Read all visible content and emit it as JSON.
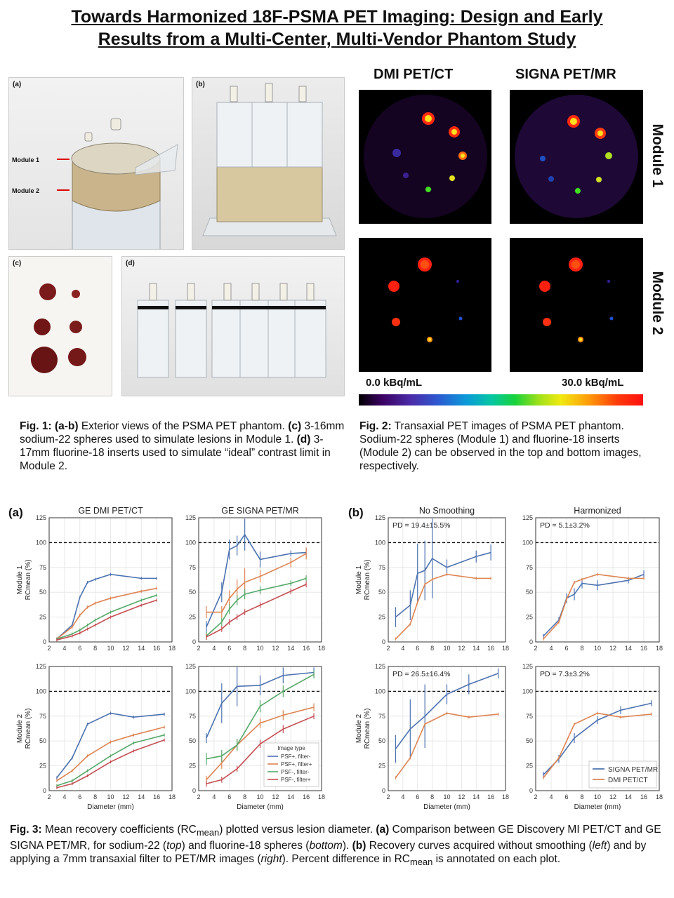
{
  "title": {
    "line1": "Towards Harmonized 18F-PSMA PET Imaging: Design and Early",
    "line2": "Results from a Multi-Center,  Multi-Vendor  Phantom Study"
  },
  "fig1": {
    "panel_a": "(a)",
    "panel_b": "(b)",
    "panel_c": "(c)",
    "panel_d": "(d)",
    "module1_label": "Module 1",
    "module2_label": "Module 2",
    "caption": {
      "fig": "Fig. 1:",
      "ab": "(a-b)",
      "t1": " Exterior views of the PSMA PET phantom. ",
      "c": "(c)",
      "t2": " 3-16mm sodium-22 spheres used to simulate lesions in Module 1. ",
      "d": "(d)",
      "t3": " 3-17mm fluorine-18 inserts used to simulate “ideal” contrast limit in Module 2."
    }
  },
  "fig2": {
    "header_dmi": "DMI PET/CT",
    "header_signa": "SIGNA PET/MR",
    "row1": "Module 1",
    "row2": "Module 2",
    "cbar_min": "0.0 kBq/mL",
    "cbar_max": "30.0 kBq/mL",
    "caption": {
      "fig": "Fig. 2:",
      "text": " Transaxial PET images of PSMA PET phantom. Sodium-22 spheres (Module 1) and fluorine-18 inserts (Module 2) can be observed in the top and bottom images, respectively."
    }
  },
  "fig3": {
    "panel_a_label": "(a)",
    "panel_b_label": "(b)",
    "caption": {
      "fig": "Fig. 3:",
      "t1": " Mean recovery coefficients (RC",
      "sub1": "mean",
      "t2": ") plotted versus lesion diameter. ",
      "a": "(a)",
      "t3": " Comparison between GE Discovery MI PET/CT and GE SIGNA PET/MR, for sodium-22 (",
      "top": "top",
      "t4": ") and fluorine-18 spheres (",
      "bottom": "bottom",
      "t5": "). ",
      "b": "(b)",
      "t6": " Recovery curves acquired without smoothing (",
      "left": "left",
      "t7": ") and by applying a 7mm transaxial filter to PET/MR images (",
      "right": "right",
      "t8": "). Percent difference in RC",
      "sub2": "mean",
      "t9": " is annotated on each plot."
    }
  },
  "chart_data": [
    {
      "type": "line",
      "panel": "(a)",
      "row": "Module 1",
      "title": "GE DMI PET/CT",
      "xlabel": "",
      "ylabel": "RCmean (%)",
      "xlim": [
        2,
        18
      ],
      "ylim": [
        0,
        125
      ],
      "ref_line": 100,
      "series": [
        {
          "x": [
            3,
            5,
            6,
            7,
            8,
            10,
            14,
            16
          ],
          "values": [
            3,
            17,
            45,
            60,
            63,
            68,
            64,
            64
          ]
        },
        {
          "x": [
            3,
            5,
            6,
            7,
            8,
            10,
            14,
            16
          ],
          "values": [
            3,
            15,
            27,
            35,
            39,
            44,
            51,
            54
          ]
        },
        {
          "x": [
            3,
            5,
            6,
            7,
            8,
            10,
            14,
            16
          ],
          "values": [
            3,
            8,
            12,
            17,
            22,
            30,
            42,
            47
          ]
        },
        {
          "x": [
            3,
            5,
            6,
            7,
            8,
            10,
            14,
            16
          ],
          "values": [
            2,
            6,
            9,
            13,
            17,
            25,
            37,
            42
          ]
        }
      ]
    },
    {
      "type": "line",
      "panel": "(a)",
      "row": "Module 1",
      "title": "GE SIGNA PET/MR",
      "xlabel": "",
      "ylabel": "",
      "xlim": [
        2,
        18
      ],
      "ylim": [
        0,
        125
      ],
      "ref_line": 100,
      "series": [
        {
          "x": [
            3,
            5,
            6,
            7,
            8,
            10,
            14,
            16
          ],
          "values": [
            15,
            50,
            93,
            97,
            108,
            83,
            89,
            90
          ],
          "err": [
            6,
            10,
            10,
            10,
            16,
            8,
            3,
            5
          ]
        },
        {
          "x": [
            3,
            5,
            6,
            7,
            8,
            10,
            14,
            16
          ],
          "values": [
            30,
            30,
            44,
            53,
            60,
            66,
            80,
            89
          ],
          "err": [
            6,
            6,
            8,
            10,
            14,
            6,
            5,
            6
          ]
        },
        {
          "x": [
            3,
            5,
            6,
            7,
            8,
            10,
            14,
            16
          ],
          "values": [
            6,
            20,
            33,
            42,
            48,
            52,
            59,
            64
          ],
          "err": [
            4,
            4,
            5,
            5,
            5,
            4,
            3,
            3
          ]
        },
        {
          "x": [
            3,
            5,
            6,
            7,
            8,
            10,
            14,
            16
          ],
          "values": [
            5,
            13,
            20,
            25,
            30,
            37,
            51,
            58
          ],
          "err": [
            3,
            3,
            3,
            3,
            3,
            3,
            3,
            3
          ]
        }
      ]
    },
    {
      "type": "line",
      "panel": "(a)",
      "row": "Module 2",
      "title": "",
      "xlabel": "Diameter (mm)",
      "ylabel": "RCmean (%)",
      "xlim": [
        2,
        18
      ],
      "ylim": [
        0,
        125
      ],
      "ref_line": 100,
      "series": [
        {
          "x": [
            3,
            5,
            7,
            10,
            13,
            17
          ],
          "values": [
            13,
            33,
            67,
            78,
            74,
            77
          ]
        },
        {
          "x": [
            3,
            5,
            7,
            10,
            13,
            17
          ],
          "values": [
            10,
            20,
            35,
            49,
            56,
            64
          ]
        },
        {
          "x": [
            3,
            5,
            7,
            10,
            13,
            17
          ],
          "values": [
            5,
            10,
            20,
            35,
            48,
            56
          ]
        },
        {
          "x": [
            3,
            5,
            7,
            10,
            13,
            17
          ],
          "values": [
            3,
            7,
            15,
            29,
            40,
            51
          ]
        }
      ]
    },
    {
      "type": "line",
      "panel": "(a)",
      "row": "Module 2",
      "title": "",
      "xlabel": "Diameter (mm)",
      "ylabel": "",
      "xlim": [
        2,
        18
      ],
      "ylim": [
        0,
        125
      ],
      "ref_line": 100,
      "legend_title": "Image type",
      "legend_position": "lower-right",
      "series": [
        {
          "name": "PSF+, filter-",
          "x": [
            3,
            5,
            7,
            10,
            13,
            17
          ],
          "values": [
            53,
            88,
            105,
            106,
            116,
            119
          ],
          "err": [
            5,
            20,
            20,
            10,
            8,
            5
          ]
        },
        {
          "name": "PSF+, filter+",
          "x": [
            3,
            5,
            7,
            10,
            13,
            17
          ],
          "values": [
            11,
            28,
            46,
            68,
            76,
            84
          ],
          "err": [
            4,
            6,
            6,
            5,
            5,
            4
          ]
        },
        {
          "name": "PSF-, filter-",
          "x": [
            3,
            5,
            7,
            10,
            13,
            17
          ],
          "values": [
            32,
            35,
            46,
            85,
            100,
            117
          ],
          "err": [
            6,
            6,
            6,
            6,
            6,
            4
          ]
        },
        {
          "name": "PSF-, filter+",
          "x": [
            3,
            5,
            7,
            10,
            13,
            17
          ],
          "values": [
            7,
            11,
            22,
            47,
            62,
            75
          ],
          "err": [
            3,
            3,
            3,
            4,
            4,
            3
          ]
        }
      ]
    },
    {
      "type": "line",
      "panel": "(b)",
      "row": "Module 1",
      "title": "No Smoothing",
      "annotation": "PD = 19.4±15.5%",
      "xlabel": "",
      "ylabel": "RCmean (%)",
      "xlim": [
        2,
        18
      ],
      "ylim": [
        0,
        125
      ],
      "ref_line": 100,
      "series": [
        {
          "x": [
            3,
            5,
            6,
            7,
            8,
            10,
            14,
            16
          ],
          "values": [
            25,
            37,
            69,
            72,
            84,
            75,
            86,
            90
          ],
          "err": [
            10,
            15,
            30,
            30,
            40,
            8,
            6,
            8
          ]
        },
        {
          "x": [
            3,
            5,
            6,
            7,
            8,
            10,
            14,
            16
          ],
          "values": [
            3,
            18,
            40,
            58,
            63,
            68,
            64,
            64
          ]
        }
      ]
    },
    {
      "type": "line",
      "panel": "(b)",
      "row": "Module 1",
      "title": "Harmonized",
      "annotation": "PD = 5.1±3.2%",
      "xlabel": "",
      "ylabel": "",
      "xlim": [
        2,
        18
      ],
      "ylim": [
        0,
        125
      ],
      "ref_line": 100,
      "series": [
        {
          "x": [
            3,
            5,
            6,
            7,
            8,
            10,
            14,
            16
          ],
          "values": [
            6,
            22,
            44,
            48,
            59,
            57,
            62,
            68
          ],
          "err": [
            2,
            3,
            5,
            6,
            5,
            5,
            3,
            4
          ]
        },
        {
          "x": [
            3,
            5,
            6,
            7,
            8,
            10,
            14,
            16
          ],
          "values": [
            3,
            20,
            43,
            60,
            63,
            68,
            64,
            64
          ]
        }
      ]
    },
    {
      "type": "line",
      "panel": "(b)",
      "row": "Module 2",
      "title": "",
      "annotation": "PD = 26.5±16.4%",
      "xlabel": "Diameter (mm)",
      "ylabel": "RCmean (%)",
      "xlim": [
        2,
        18
      ],
      "ylim": [
        0,
        125
      ],
      "ref_line": 100,
      "series": [
        {
          "x": [
            3,
            5,
            7,
            10,
            13,
            17
          ],
          "values": [
            42,
            62,
            75,
            97,
            107,
            118
          ],
          "err": [
            14,
            30,
            32,
            10,
            10,
            5
          ]
        },
        {
          "x": [
            3,
            5,
            7,
            10,
            13,
            17
          ],
          "values": [
            13,
            33,
            67,
            78,
            74,
            77
          ]
        }
      ]
    },
    {
      "type": "line",
      "panel": "(b)",
      "row": "Module 2",
      "title": "",
      "annotation": "PD = 7.3±3.2%",
      "xlabel": "Diameter (mm)",
      "ylabel": "",
      "xlim": [
        2,
        18
      ],
      "ylim": [
        0,
        125
      ],
      "ref_line": 100,
      "legend_position": "lower-right",
      "series": [
        {
          "name": "SIGNA PET/MR",
          "x": [
            3,
            5,
            7,
            10,
            13,
            17
          ],
          "values": [
            16,
            32,
            53,
            71,
            81,
            88
          ],
          "err": [
            3,
            4,
            5,
            4,
            4,
            3
          ]
        },
        {
          "name": "DMI PET/CT",
          "x": [
            3,
            5,
            7,
            10,
            13,
            17
          ],
          "values": [
            13,
            33,
            67,
            78,
            74,
            77
          ]
        }
      ]
    }
  ],
  "colors": {
    "blue": "#4C72B0",
    "orange": "#DD8452",
    "green": "#55A868",
    "red": "#C44E52"
  }
}
